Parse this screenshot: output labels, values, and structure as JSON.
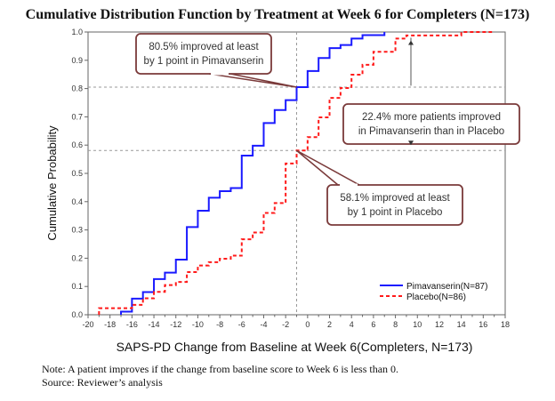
{
  "chart_data": {
    "type": "line",
    "title": "Cumulative Distribution Function by Treatment at Week 6 for Completers (N=173)",
    "xlabel": "SAPS-PD Change from Baseline at Week 6(Completers, N=173)",
    "ylabel": "Cumulative Probability",
    "xlim": [
      -20,
      18
    ],
    "ylim": [
      0,
      1.0
    ],
    "xticks": [
      -20,
      -18,
      -16,
      -14,
      -12,
      -10,
      -8,
      -6,
      -4,
      -2,
      0,
      2,
      4,
      6,
      8,
      10,
      12,
      14,
      16,
      18
    ],
    "yticks": [
      0.0,
      0.1,
      0.2,
      0.3,
      0.4,
      0.5,
      0.6,
      0.7,
      0.8,
      0.9,
      1.0
    ],
    "ytick_labels": [
      "0.0",
      "0.1",
      "0.2",
      "0.3",
      "0.4",
      "0.5",
      "0.6",
      "0.7",
      "0.8",
      "0.9",
      "1.0"
    ],
    "grid": false,
    "reference_lines": {
      "x": -1,
      "y": [
        0.805,
        0.581
      ]
    },
    "legend_position": "bottom-right",
    "series": [
      {
        "name": "Pimavanserin(N=87)",
        "color": "#1a1aff",
        "style": "solid",
        "step": true,
        "x": [
          -17,
          -16,
          -15,
          -14,
          -13,
          -12,
          -11,
          -10,
          -9,
          -8,
          -7,
          -6,
          -5,
          -4,
          -3,
          -2,
          -1,
          0,
          1,
          2,
          3,
          4,
          5,
          7
        ],
        "y": [
          0.011,
          0.057,
          0.08,
          0.126,
          0.149,
          0.195,
          0.31,
          0.368,
          0.414,
          0.437,
          0.448,
          0.563,
          0.598,
          0.678,
          0.724,
          0.759,
          0.805,
          0.862,
          0.908,
          0.943,
          0.954,
          0.977,
          0.989,
          1.0
        ]
      },
      {
        "name": "Placebo(N=86)",
        "color": "#ff1a1a",
        "style": "dashed",
        "step": true,
        "x": [
          -19,
          -17,
          -16,
          -15,
          -14,
          -13,
          -12,
          -11,
          -10,
          -9,
          -8,
          -7,
          -6,
          -5,
          -4,
          -3,
          -2,
          -1,
          0,
          1,
          2,
          3,
          4,
          5,
          6,
          8,
          9,
          10,
          14,
          16
        ],
        "y": [
          0.023,
          0.023,
          0.035,
          0.058,
          0.081,
          0.105,
          0.116,
          0.151,
          0.174,
          0.186,
          0.198,
          0.209,
          0.267,
          0.291,
          0.36,
          0.395,
          0.535,
          0.581,
          0.628,
          0.698,
          0.767,
          0.802,
          0.849,
          0.884,
          0.93,
          0.977,
          0.988,
          0.988,
          1.0,
          1.0
        ]
      }
    ],
    "annotations": [
      {
        "lines": [
          "80.5% improved at least",
          "by 1 point in Pimavanserin"
        ]
      },
      {
        "lines": [
          "22.4% more patients improved",
          "in Pimavanserin than in Placebo"
        ]
      },
      {
        "lines": [
          "58.1% improved at least",
          "by 1 point in Placebo"
        ]
      }
    ]
  },
  "notes": {
    "note": "Note: A patient improves if the change from baseline score to Week 6 is less than 0.",
    "source": "Source: Reviewer’s analysis"
  }
}
